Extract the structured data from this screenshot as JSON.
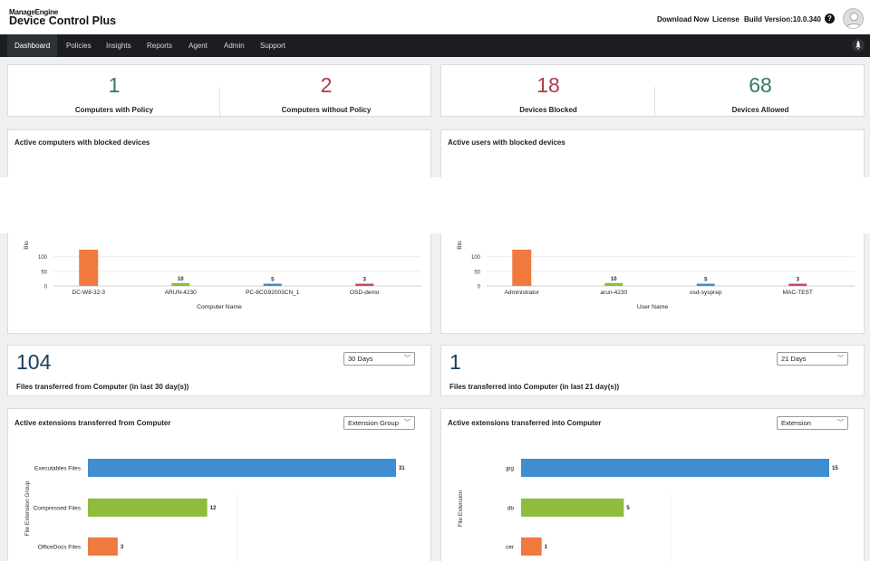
{
  "header": {
    "brand_small": "ManageEngine",
    "brand_product": "Device Control Plus",
    "download_label": "Download Now",
    "license_label": "License",
    "build_label": "Build Version:10.0.340",
    "help_glyph": "?"
  },
  "nav": {
    "items": [
      "Dashboard",
      "Policies",
      "Insights",
      "Reports",
      "Agent",
      "Admin",
      "Support"
    ],
    "active": "Dashboard"
  },
  "stats": [
    {
      "value": "1",
      "label": "Computers with Policy",
      "color": "#2e7d5b"
    },
    {
      "value": "2",
      "label": "Computers without Policy",
      "color": "#b03a48"
    },
    {
      "value": "18",
      "label": "Devices Blocked",
      "color": "#b03a48"
    },
    {
      "value": "68",
      "label": "Devices Allowed",
      "color": "#2e7d5b"
    }
  ],
  "colors": {
    "orange": "#f07a3e",
    "green": "#8fbc3b",
    "blue": "#3e8ed0",
    "red": "#d9445c",
    "number_blue": "#1a3d5c"
  },
  "chart_data": [
    {
      "type": "bar",
      "title": "Active computers with blocked devices",
      "xlabel": "Computer Name",
      "ylabel": "Blo",
      "yticks": [
        "0",
        "50",
        "100"
      ],
      "ylim": [
        0,
        130
      ],
      "categories": [
        "DC-W8-32-3",
        "ARUN-4230",
        "PC-8CG92003CN_1",
        "OSD-demo"
      ],
      "values": [
        124,
        10,
        5,
        3
      ],
      "data_labels": [
        "",
        "10",
        "5",
        "3"
      ],
      "colors": [
        "#f07a3e",
        "#8fbc3b",
        "#3e8ed0",
        "#d9445c"
      ]
    },
    {
      "type": "bar",
      "title": "Active users with blocked devices",
      "xlabel": "User Name",
      "ylabel": "Blo",
      "yticks": [
        "0",
        "50",
        "100"
      ],
      "ylim": [
        0,
        130
      ],
      "categories": [
        "Administrator",
        "arun-4230",
        "osd-sysprep",
        "MAC-TEST"
      ],
      "values": [
        124,
        10,
        5,
        3
      ],
      "data_labels": [
        "",
        "10",
        "5",
        "3"
      ],
      "colors": [
        "#f07a3e",
        "#8fbc3b",
        "#3e8ed0",
        "#d9445c"
      ]
    },
    {
      "type": "bar",
      "orientation": "horizontal",
      "title": "Active extensions transferred from Computer",
      "ylabel": "File Extension Group",
      "categories": [
        "Executables Files",
        "Compressed Files",
        "OfficeDocs Files"
      ],
      "values": [
        31,
        12,
        3
      ],
      "data_labels": [
        "31",
        "12",
        "3"
      ],
      "colors": [
        "#3e8ed0",
        "#8fbc3b",
        "#f07a3e"
      ]
    },
    {
      "type": "bar",
      "orientation": "horizontal",
      "title": "Active extensions transferred into Computer",
      "ylabel": "File Extension",
      "categories": [
        "jpg",
        "db",
        "cer"
      ],
      "values": [
        15,
        5,
        1
      ],
      "data_labels": [
        "15",
        "5",
        "1"
      ],
      "colors": [
        "#3e8ed0",
        "#8fbc3b",
        "#f07a3e"
      ]
    }
  ],
  "transfers": {
    "from": {
      "count": "104",
      "label": "Files transferred from Computer (in last 30 day(s))",
      "period": "30 Days",
      "group_select": "Extension Group"
    },
    "into": {
      "count": "1",
      "label": "Files transferred into Computer (in last 21 day(s))",
      "period": "21 Days",
      "group_select": "Extension"
    }
  }
}
